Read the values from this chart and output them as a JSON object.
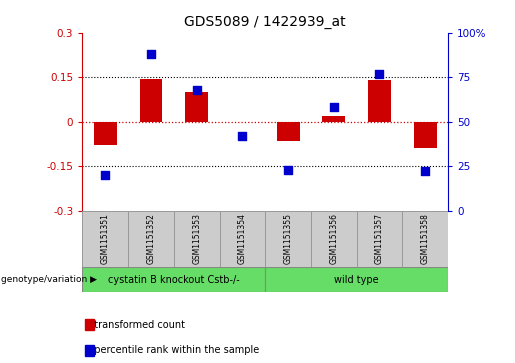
{
  "title": "GDS5089 / 1422939_at",
  "samples": [
    "GSM1151351",
    "GSM1151352",
    "GSM1151353",
    "GSM1151354",
    "GSM1151355",
    "GSM1151356",
    "GSM1151357",
    "GSM1151358"
  ],
  "red_bars": [
    -0.08,
    0.145,
    0.1,
    0.0,
    -0.065,
    0.018,
    0.14,
    -0.09
  ],
  "blue_dots_pct": [
    20,
    88,
    68,
    42,
    23,
    58,
    77,
    22
  ],
  "ylim": [
    -0.3,
    0.3
  ],
  "right_ylim": [
    0,
    100
  ],
  "bar_color": "#cc0000",
  "dot_color": "#0000cc",
  "group1_samples": 4,
  "group1_label": "cystatin B knockout Cstb-/-",
  "group2_label": "wild type",
  "group_color": "#66dd66",
  "bg_color": "#ffffff",
  "plot_bg": "#ffffff",
  "dotted_lines": [
    0.15,
    -0.15
  ],
  "zero_line_color": "#cc0000",
  "genotype_label": "genotype/variation",
  "legend_red": "transformed count",
  "legend_blue": "percentile rank within the sample",
  "right_yticks": [
    0,
    25,
    50,
    75,
    100
  ],
  "right_ytick_labels": [
    "0",
    "25",
    "50",
    "75",
    "100%"
  ],
  "left_yticks": [
    -0.3,
    -0.15,
    0,
    0.15,
    0.3
  ],
  "bar_width": 0.5,
  "dot_size": 40,
  "header_bg": "#cccccc"
}
